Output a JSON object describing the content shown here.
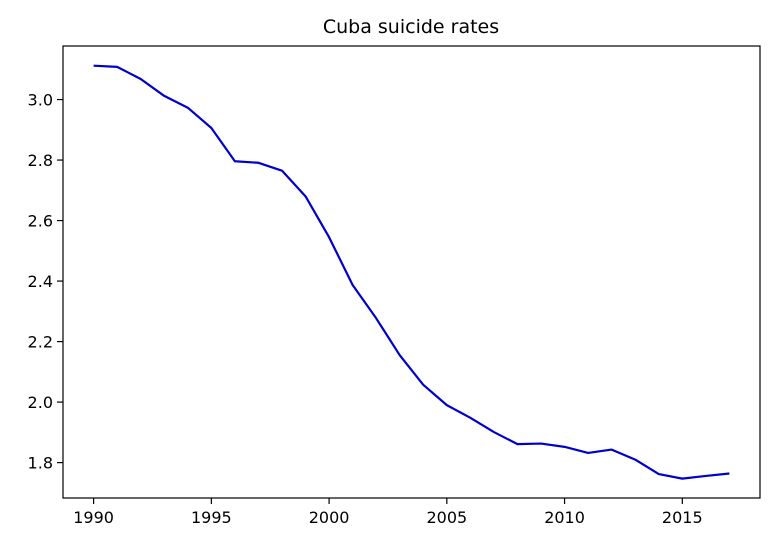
{
  "chart_data": {
    "type": "line",
    "title": "Cuba suicide rates",
    "xlabel": "",
    "ylabel": "",
    "xlim": [
      1988.7,
      2018.3
    ],
    "ylim": [
      1.683,
      3.177
    ],
    "x_ticks": [
      1990,
      1995,
      2000,
      2005,
      2010,
      2015
    ],
    "x_tick_labels": [
      "1990",
      "1995",
      "2000",
      "2005",
      "2010",
      "2015"
    ],
    "y_ticks": [
      1.8,
      2.0,
      2.2,
      2.4,
      2.6,
      2.8,
      3.0
    ],
    "y_tick_labels": [
      "1.8",
      "2.0",
      "2.2",
      "2.4",
      "2.6",
      "2.8",
      "3.0"
    ],
    "grid": false,
    "series": [
      {
        "color": "#0000cc",
        "x": [
          1990,
          1991,
          1992,
          1993,
          1994,
          1995,
          1996,
          1997,
          1998,
          1999,
          2000,
          2001,
          2002,
          2003,
          2004,
          2005,
          2006,
          2007,
          2008,
          2009,
          2010,
          2011,
          2012,
          2013,
          2014,
          2015,
          2016,
          2017
        ],
        "y": [
          3.112,
          3.108,
          3.068,
          3.012,
          2.973,
          2.906,
          2.796,
          2.791,
          2.765,
          2.68,
          2.545,
          2.387,
          2.277,
          2.155,
          2.057,
          1.99,
          1.948,
          1.901,
          1.861,
          1.863,
          1.852,
          1.832,
          1.843,
          1.81,
          1.762,
          1.747,
          1.756,
          1.764
        ]
      }
    ]
  }
}
